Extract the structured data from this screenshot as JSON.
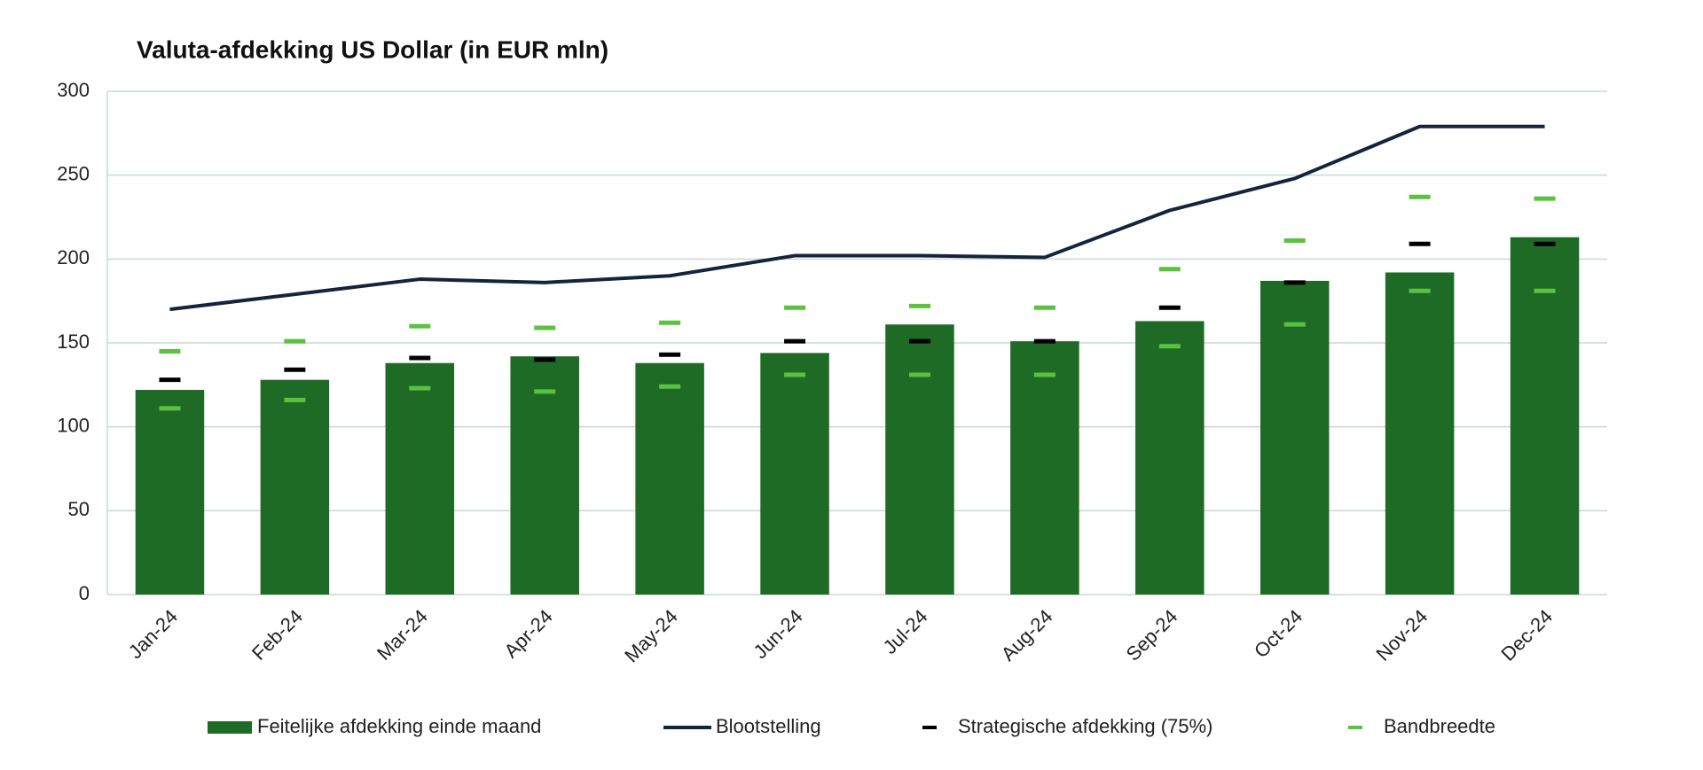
{
  "chart_data": {
    "type": "bar",
    "title": "Valuta-afdekking US Dollar (in EUR mln)",
    "categories": [
      "Jan-24",
      "Feb-24",
      "Mar-24",
      "Apr-24",
      "May-24",
      "Jun-24",
      "Jul-24",
      "Aug-24",
      "Sep-24",
      "Oct-24",
      "Nov-24",
      "Dec-24"
    ],
    "series": [
      {
        "name": "Feitelijke afdekking einde maand",
        "type": "bar",
        "color": "#1e6b26",
        "values": [
          122,
          128,
          138,
          142,
          138,
          144,
          161,
          151,
          163,
          187,
          192,
          213
        ]
      },
      {
        "name": "Blootstelling",
        "type": "line",
        "color": "#14243d",
        "values": [
          170,
          179,
          188,
          186,
          190,
          202,
          202,
          201,
          229,
          248,
          279,
          279
        ]
      },
      {
        "name": "Strategische afdekking (75%)",
        "type": "marker",
        "color": "#000000",
        "values": [
          128,
          134,
          141,
          140,
          143,
          151,
          151,
          151,
          171,
          186,
          209,
          209
        ]
      },
      {
        "name": "Bandbreedte",
        "type": "range-marker",
        "color": "#5cc040",
        "values": [
          [
            111,
            145
          ],
          [
            116,
            151
          ],
          [
            123,
            160
          ],
          [
            121,
            159
          ],
          [
            124,
            162
          ],
          [
            131,
            171
          ],
          [
            131,
            172
          ],
          [
            131,
            171
          ],
          [
            148,
            194
          ],
          [
            161,
            211
          ],
          [
            181,
            237
          ],
          [
            181,
            236
          ]
        ]
      }
    ],
    "ylim": [
      0,
      300
    ],
    "yticks": [
      0,
      50,
      100,
      150,
      200,
      250,
      300
    ],
    "grid": true,
    "legend": "bottom"
  }
}
